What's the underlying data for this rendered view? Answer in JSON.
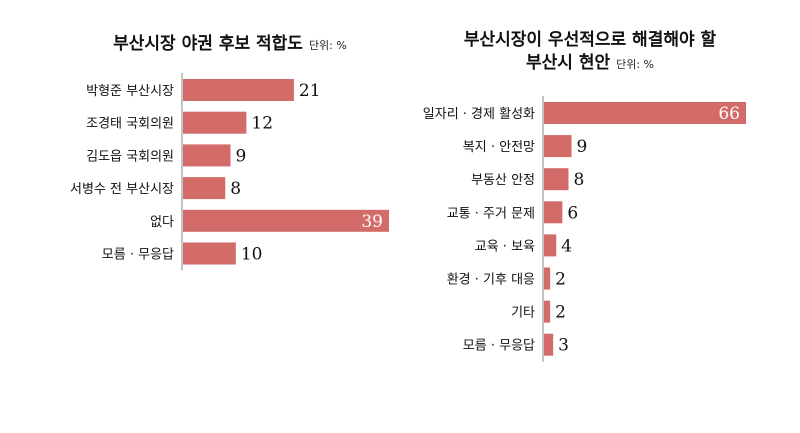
{
  "chart_data": [
    {
      "type": "bar",
      "orientation": "horizontal",
      "title": "부산시장 야권 후보 적합도",
      "unit": "단위: %",
      "categories": [
        "박형준 부산시장",
        "조경태 국회의원",
        "김도읍 국회의원",
        "서병수 전 부산시장",
        "없다",
        "모름 · 무응답"
      ],
      "values": [
        21,
        12,
        9,
        8,
        39,
        10
      ],
      "bar_color": "#d36b68",
      "xlim": [
        0,
        39
      ]
    },
    {
      "type": "bar",
      "orientation": "horizontal",
      "title_lines": [
        "부산시장이 우선적으로 해결해야 할",
        "부산시 현안"
      ],
      "unit": "단위: %",
      "categories": [
        "일자리 · 경제 활성화",
        "복지 · 안전망",
        "부동산 안정",
        "교통 · 주거 문제",
        "교육 · 보육",
        "환경 · 기후 대응",
        "기타",
        "모름 · 무응답"
      ],
      "values": [
        66,
        9,
        8,
        6,
        4,
        2,
        2,
        3
      ],
      "bar_color": "#d36b68",
      "xlim": [
        0,
        66
      ]
    }
  ]
}
